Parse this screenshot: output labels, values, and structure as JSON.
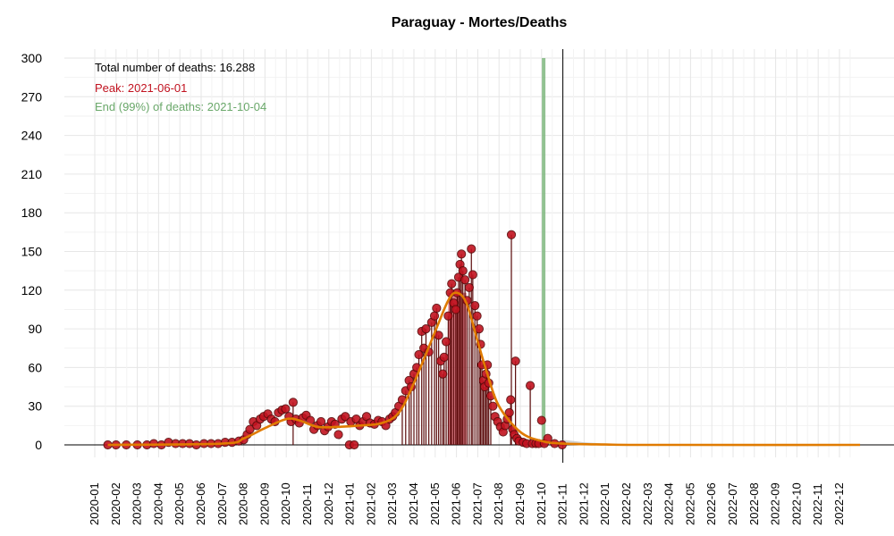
{
  "chart_data": {
    "type": "line",
    "title": "Paraguay - Mortes/Deaths",
    "xlabel": "",
    "ylabel": "",
    "ylim": [
      0,
      300
    ],
    "yticks": [
      0,
      30,
      60,
      90,
      120,
      150,
      180,
      210,
      240,
      270,
      300
    ],
    "xlim": [
      "2020-01-01",
      "2022-12-31"
    ],
    "xticks": [
      "2020-01",
      "2020-02",
      "2020-03",
      "2020-04",
      "2020-05",
      "2020-06",
      "2020-07",
      "2020-08",
      "2020-09",
      "2020-10",
      "2020-11",
      "2020-12",
      "2021-01",
      "2021-02",
      "2021-03",
      "2021-04",
      "2021-05",
      "2021-06",
      "2021-07",
      "2021-08",
      "2021-09",
      "2021-10",
      "2021-11",
      "2021-12",
      "2022-01",
      "2022-02",
      "2022-03",
      "2022-04",
      "2022-05",
      "2022-06",
      "2022-07",
      "2022-08",
      "2022-09",
      "2022-10",
      "2022-11",
      "2022-12"
    ],
    "grid": true,
    "annotations": {
      "total": "Total number of deaths: 16.288",
      "peak": "Peak: 2021-06-01",
      "end": "End (99%) of deaths: 2021-10-04"
    },
    "peak_band": [
      "2021-05-20",
      "2021-06-15"
    ],
    "end_line": "2021-10-04",
    "current_date": "2021-11-01",
    "colors": {
      "points": "#c1121f",
      "point_stroke": "#5a0a0a",
      "fit": "#e07b00",
      "peak_band": "#d0505e",
      "end_line": "#7fb77f",
      "annot_total": "#000000",
      "annot_peak": "#c1121f",
      "annot_end": "#6aa86a"
    },
    "series": [
      {
        "kind": "daily_points",
        "points": [
          [
            "2020-01-20",
            0
          ],
          [
            "2020-02-01",
            0
          ],
          [
            "2020-02-15",
            0
          ],
          [
            "2020-03-01",
            0
          ],
          [
            "2020-03-15",
            0
          ],
          [
            "2020-03-25",
            1
          ],
          [
            "2020-04-05",
            0
          ],
          [
            "2020-04-15",
            2
          ],
          [
            "2020-04-25",
            1
          ],
          [
            "2020-05-05",
            1
          ],
          [
            "2020-05-15",
            1
          ],
          [
            "2020-05-25",
            0
          ],
          [
            "2020-06-05",
            1
          ],
          [
            "2020-06-15",
            1
          ],
          [
            "2020-06-25",
            1
          ],
          [
            "2020-07-05",
            2
          ],
          [
            "2020-07-15",
            2
          ],
          [
            "2020-07-25",
            3
          ],
          [
            "2020-08-01",
            4
          ],
          [
            "2020-08-06",
            8
          ],
          [
            "2020-08-10",
            12
          ],
          [
            "2020-08-15",
            18
          ],
          [
            "2020-08-20",
            15
          ],
          [
            "2020-08-25",
            20
          ],
          [
            "2020-08-30",
            22
          ],
          [
            "2020-09-05",
            24
          ],
          [
            "2020-09-10",
            20
          ],
          [
            "2020-09-15",
            18
          ],
          [
            "2020-09-20",
            25
          ],
          [
            "2020-09-25",
            27
          ],
          [
            "2020-09-30",
            28
          ],
          [
            "2020-10-05",
            22
          ],
          [
            "2020-10-08",
            18
          ],
          [
            "2020-10-11",
            33
          ],
          [
            "2020-10-15",
            20
          ],
          [
            "2020-10-20",
            17
          ],
          [
            "2020-10-25",
            21
          ],
          [
            "2020-10-30",
            23
          ],
          [
            "2020-11-05",
            19
          ],
          [
            "2020-11-10",
            12
          ],
          [
            "2020-11-15",
            15
          ],
          [
            "2020-11-20",
            18
          ],
          [
            "2020-11-25",
            11
          ],
          [
            "2020-11-30",
            14
          ],
          [
            "2020-12-05",
            18
          ],
          [
            "2020-12-10",
            16
          ],
          [
            "2020-12-15",
            8
          ],
          [
            "2020-12-20",
            20
          ],
          [
            "2020-12-25",
            22
          ],
          [
            "2020-12-31",
            0
          ],
          [
            "2021-01-02",
            18
          ],
          [
            "2021-01-07",
            0
          ],
          [
            "2021-01-10",
            20
          ],
          [
            "2021-01-15",
            15
          ],
          [
            "2021-01-20",
            18
          ],
          [
            "2021-01-25",
            22
          ],
          [
            "2021-01-30",
            17
          ],
          [
            "2021-02-05",
            16
          ],
          [
            "2021-02-10",
            19
          ],
          [
            "2021-02-15",
            18
          ],
          [
            "2021-02-20",
            15
          ],
          [
            "2021-02-25",
            20
          ],
          [
            "2021-03-01",
            22
          ],
          [
            "2021-03-05",
            25
          ],
          [
            "2021-03-10",
            30
          ],
          [
            "2021-03-15",
            35
          ],
          [
            "2021-03-20",
            42
          ],
          [
            "2021-03-25",
            50
          ],
          [
            "2021-03-28",
            45
          ],
          [
            "2021-04-01",
            55
          ],
          [
            "2021-04-05",
            60
          ],
          [
            "2021-04-08",
            70
          ],
          [
            "2021-04-12",
            88
          ],
          [
            "2021-04-15",
            75
          ],
          [
            "2021-04-18",
            90
          ],
          [
            "2021-04-22",
            72
          ],
          [
            "2021-04-26",
            95
          ],
          [
            "2021-04-30",
            100
          ],
          [
            "2021-05-03",
            106
          ],
          [
            "2021-05-06",
            85
          ],
          [
            "2021-05-09",
            65
          ],
          [
            "2021-05-12",
            55
          ],
          [
            "2021-05-14",
            68
          ],
          [
            "2021-05-17",
            80
          ],
          [
            "2021-05-20",
            100
          ],
          [
            "2021-05-23",
            118
          ],
          [
            "2021-05-25",
            125
          ],
          [
            "2021-05-28",
            110
          ],
          [
            "2021-05-31",
            105
          ],
          [
            "2021-06-02",
            118
          ],
          [
            "2021-06-04",
            130
          ],
          [
            "2021-06-06",
            140
          ],
          [
            "2021-06-08",
            148
          ],
          [
            "2021-06-10",
            135
          ],
          [
            "2021-06-13",
            128
          ],
          [
            "2021-06-16",
            112
          ],
          [
            "2021-06-19",
            122
          ],
          [
            "2021-06-22",
            152
          ],
          [
            "2021-06-24",
            132
          ],
          [
            "2021-06-27",
            108
          ],
          [
            "2021-06-30",
            100
          ],
          [
            "2021-07-03",
            90
          ],
          [
            "2021-07-05",
            78
          ],
          [
            "2021-07-07",
            62
          ],
          [
            "2021-07-09",
            50
          ],
          [
            "2021-07-11",
            45
          ],
          [
            "2021-07-13",
            55
          ],
          [
            "2021-07-15",
            62
          ],
          [
            "2021-07-17",
            48
          ],
          [
            "2021-07-20",
            38
          ],
          [
            "2021-07-23",
            30
          ],
          [
            "2021-07-26",
            22
          ],
          [
            "2021-07-30",
            18
          ],
          [
            "2021-08-03",
            14
          ],
          [
            "2021-08-07",
            10
          ],
          [
            "2021-08-10",
            15
          ],
          [
            "2021-08-13",
            20
          ],
          [
            "2021-08-16",
            25
          ],
          [
            "2021-08-18",
            35
          ],
          [
            "2021-08-19",
            163
          ],
          [
            "2021-08-21",
            12
          ],
          [
            "2021-08-23",
            8
          ],
          [
            "2021-08-25",
            65
          ],
          [
            "2021-08-27",
            5
          ],
          [
            "2021-08-30",
            3
          ],
          [
            "2021-09-05",
            2
          ],
          [
            "2021-09-10",
            1
          ],
          [
            "2021-09-15",
            46
          ],
          [
            "2021-09-18",
            1
          ],
          [
            "2021-09-23",
            1
          ],
          [
            "2021-09-27",
            1
          ],
          [
            "2021-10-01",
            19
          ],
          [
            "2021-10-05",
            1
          ],
          [
            "2021-10-10",
            5
          ],
          [
            "2021-10-20",
            1
          ],
          [
            "2021-10-31",
            0
          ]
        ]
      },
      {
        "kind": "fitted_curve",
        "points": [
          [
            "2020-01-20",
            0
          ],
          [
            "2020-07-01",
            1
          ],
          [
            "2020-08-01",
            5
          ],
          [
            "2020-09-01",
            13
          ],
          [
            "2020-10-01",
            20
          ],
          [
            "2020-10-20",
            19
          ],
          [
            "2020-11-15",
            14
          ],
          [
            "2020-12-15",
            14
          ],
          [
            "2021-01-15",
            15
          ],
          [
            "2021-02-15",
            17
          ],
          [
            "2021-03-10",
            25
          ],
          [
            "2021-04-01",
            48
          ],
          [
            "2021-05-01",
            88
          ],
          [
            "2021-05-20",
            112
          ],
          [
            "2021-06-01",
            118
          ],
          [
            "2021-06-15",
            110
          ],
          [
            "2021-07-01",
            80
          ],
          [
            "2021-07-15",
            55
          ],
          [
            "2021-08-01",
            30
          ],
          [
            "2021-09-01",
            10
          ],
          [
            "2021-10-01",
            3
          ],
          [
            "2021-11-01",
            1
          ],
          [
            "2022-01-01",
            0.3
          ],
          [
            "2022-03-01",
            0
          ],
          [
            "2022-12-31",
            0
          ]
        ]
      },
      {
        "kind": "projection_band",
        "points": [
          [
            "2021-11-01",
            4
          ],
          [
            "2021-12-01",
            2
          ],
          [
            "2022-01-01",
            1
          ],
          [
            "2022-02-01",
            0
          ]
        ]
      }
    ]
  }
}
